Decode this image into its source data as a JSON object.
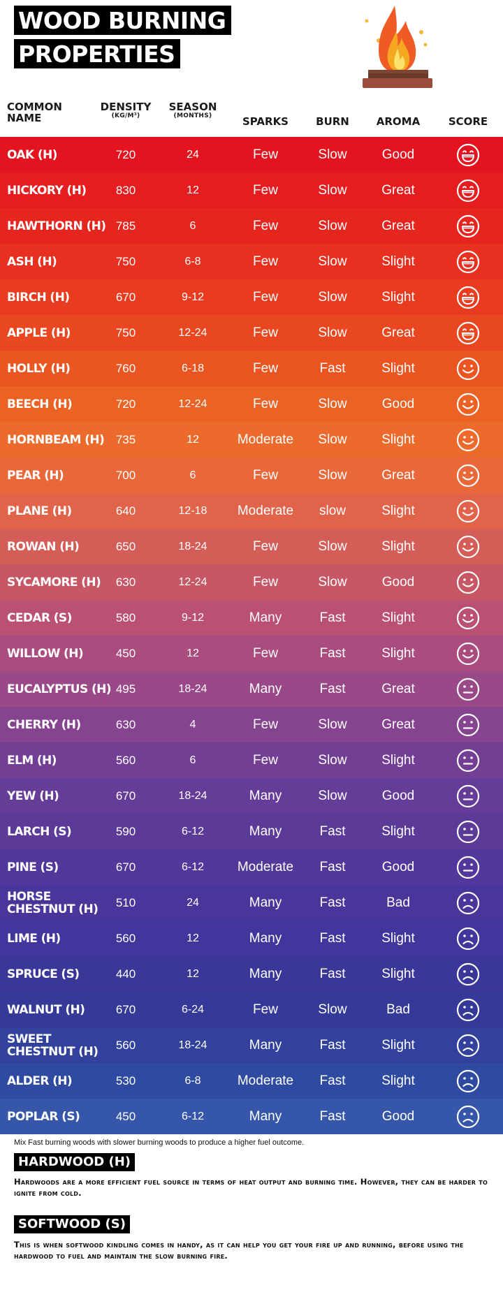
{
  "title": {
    "line1": "WOOD BURNING",
    "line2": "PROPERTIES"
  },
  "headers": {
    "name_line1": "COMMON",
    "name_line2": "NAME",
    "density": "DENSITY",
    "density_unit": "(KG/M³)",
    "season": "SEASON",
    "season_unit": "(MONTHS)",
    "sparks": "SPARKS",
    "burn": "BURN",
    "aroma": "AROMA",
    "score": "SCORE"
  },
  "rows": [
    {
      "name": "OAK (H)",
      "density": "720",
      "season": "24",
      "sparks": "Few",
      "burn": "Slow",
      "aroma": "Good",
      "score": "laughing-face-icon",
      "color": "#e3141f"
    },
    {
      "name": "HICKORY (H)",
      "density": "830",
      "season": "12",
      "sparks": "Few",
      "burn": "Slow",
      "aroma": "Great",
      "score": "laughing-face-icon",
      "color": "#e61d1f"
    },
    {
      "name": "HAWTHORN (H)",
      "density": "785",
      "season": "6",
      "sparks": "Few",
      "burn": "Slow",
      "aroma": "Great",
      "score": "laughing-face-icon",
      "color": "#e6251f"
    },
    {
      "name": "ASH (H)",
      "density": "750",
      "season": "6-8",
      "sparks": "Few",
      "burn": "Slow",
      "aroma": "Slight",
      "score": "laughing-face-icon",
      "color": "#e7301f"
    },
    {
      "name": "BIRCH (H)",
      "density": "670",
      "season": "9-12",
      "sparks": "Few",
      "burn": "Slow",
      "aroma": "Slight",
      "score": "laughing-face-icon",
      "color": "#e83b1f"
    },
    {
      "name": "APPLE (H)",
      "density": "750",
      "season": "12-24",
      "sparks": "Few",
      "burn": "Slow",
      "aroma": "Great",
      "score": "laughing-face-icon",
      "color": "#e94720"
    },
    {
      "name": "HOLLY (H)",
      "density": "760",
      "season": "6-18",
      "sparks": "Few",
      "burn": "Fast",
      "aroma": "Slight",
      "score": "smile-face-icon",
      "color": "#ea5522"
    },
    {
      "name": "BEECH (H)",
      "density": "720",
      "season": "12-24",
      "sparks": "Few",
      "burn": "Slow",
      "aroma": "Good",
      "score": "smile-face-icon",
      "color": "#eb6225"
    },
    {
      "name": "HORNBEAM (H)",
      "density": "735",
      "season": "12",
      "sparks": "Moderate",
      "burn": "Slow",
      "aroma": "Slight",
      "score": "smile-face-icon",
      "color": "#ec6b2c"
    },
    {
      "name": "PEAR (H)",
      "density": "700",
      "season": "6",
      "sparks": "Few",
      "burn": "Slow",
      "aroma": "Great",
      "score": "smile-face-icon",
      "color": "#e9683a"
    },
    {
      "name": "PLANE (H)",
      "density": "640",
      "season": "12-18",
      "sparks": "Moderate",
      "burn": "slow",
      "aroma": "Slight",
      "score": "smile-face-icon",
      "color": "#e0634a"
    },
    {
      "name": "ROWAN (H)",
      "density": "650",
      "season": "18-24",
      "sparks": "Few",
      "burn": "Slow",
      "aroma": "Slight",
      "score": "smile-face-icon",
      "color": "#d45d58"
    },
    {
      "name": "SYCAMORE (H)",
      "density": "630",
      "season": "12-24",
      "sparks": "Few",
      "burn": "Slow",
      "aroma": "Good",
      "score": "smile-face-icon",
      "color": "#c85765"
    },
    {
      "name": "CEDAR (S)",
      "density": "580",
      "season": "9-12",
      "sparks": "Many",
      "burn": "Fast",
      "aroma": "Slight",
      "score": "smile-face-icon",
      "color": "#bb5172"
    },
    {
      "name": "WILLOW (H)",
      "density": "450",
      "season": "12",
      "sparks": "Few",
      "burn": "Fast",
      "aroma": "Slight",
      "score": "smile-face-icon",
      "color": "#aa4c7e"
    },
    {
      "name": "EUCALYPTUS (H)",
      "density": "495",
      "season": "18-24",
      "sparks": "Many",
      "burn": "Fast",
      "aroma": "Great",
      "score": "neutral-face-icon",
      "color": "#994888"
    },
    {
      "name": "CHERRY (H)",
      "density": "630",
      "season": "4",
      "sparks": "Few",
      "burn": "Slow",
      "aroma": "Great",
      "score": "neutral-face-icon",
      "color": "#86438f"
    },
    {
      "name": "ELM (H)",
      "density": "560",
      "season": "6",
      "sparks": "Few",
      "burn": "Slow",
      "aroma": "Slight",
      "score": "neutral-face-icon",
      "color": "#733f94"
    },
    {
      "name": "YEW (H)",
      "density": "670",
      "season": "18-24",
      "sparks": "Many",
      "burn": "Slow",
      "aroma": "Good",
      "score": "neutral-face-icon",
      "color": "#653c97"
    },
    {
      "name": "LARCH (S)",
      "density": "590",
      "season": "6-12",
      "sparks": "Many",
      "burn": "Fast",
      "aroma": "Slight",
      "score": "neutral-face-icon",
      "color": "#5b3a98"
    },
    {
      "name": "PINE (S)",
      "density": "670",
      "season": "6-12",
      "sparks": "Moderate",
      "burn": "Fast",
      "aroma": "Good",
      "score": "neutral-face-icon",
      "color": "#52389a"
    },
    {
      "name": "HORSE CHESTNUT (H)",
      "density": "510",
      "season": "24",
      "sparks": "Many",
      "burn": "Fast",
      "aroma": "Bad",
      "score": "sad-face-icon",
      "color": "#4a369b"
    },
    {
      "name": "LIME (H)",
      "density": "560",
      "season": "12",
      "sparks": "Many",
      "burn": "Fast",
      "aroma": "Slight",
      "score": "sad-face-icon",
      "color": "#42359b"
    },
    {
      "name": "SPRUCE (S)",
      "density": "440",
      "season": "12",
      "sparks": "Many",
      "burn": "Fast",
      "aroma": "Slight",
      "score": "sad-face-icon",
      "color": "#3b3799"
    },
    {
      "name": "WALNUT (H)",
      "density": "670",
      "season": "6-24",
      "sparks": "Few",
      "burn": "Slow",
      "aroma": "Bad",
      "score": "sad-face-icon",
      "color": "#353a99"
    },
    {
      "name": "SWEET CHESTNUT (H)",
      "density": "560",
      "season": "18-24",
      "sparks": "Many",
      "burn": "Fast",
      "aroma": "Slight",
      "score": "sad-face-icon",
      "color": "#32419c"
    },
    {
      "name": "ALDER (H)",
      "density": "530",
      "season": "6-8",
      "sparks": "Moderate",
      "burn": "Fast",
      "aroma": "Slight",
      "score": "sad-face-icon",
      "color": "#2f4ba1"
    },
    {
      "name": "POPLAR (S)",
      "density": "450",
      "season": "6-12",
      "sparks": "Many",
      "burn": "Fast",
      "aroma": "Good",
      "score": "sad-face-icon",
      "color": "#3556a9"
    }
  ],
  "footnote": "Mix Fast burning woods with slower burning woods to produce a higher fuel outcome.",
  "hardwood": {
    "label": "HARDWOOD (H)",
    "text": "Hardwoods are a more efficient fuel source in terms of heat output and burning time. However, they can be harder to ignite from cold."
  },
  "softwood": {
    "label": "SOFTWOOD (S)",
    "text": "This is when softwood kindling comes in handy, as it can help you get your fire up and running, before using the hardwood to fuel and maintain the slow burning fire."
  }
}
